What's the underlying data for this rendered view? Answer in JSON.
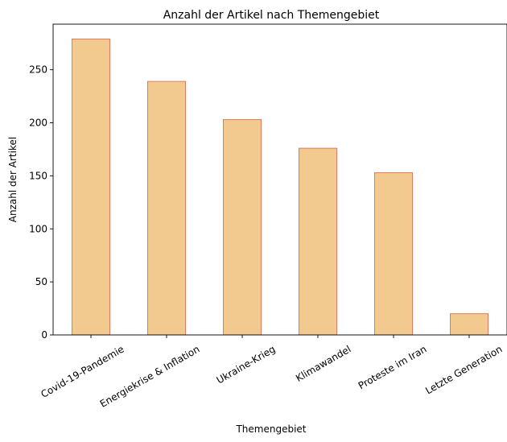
{
  "chart_data": {
    "type": "bar",
    "title": "Anzahl der Artikel nach Themengebiet",
    "xlabel": "Themengebiet",
    "ylabel": "Anzahl der Artikel",
    "categories": [
      "Covid-19-Pandemie",
      "Energiekrise & Inflation",
      "Ukraine-Krieg",
      "Klimawandel",
      "Proteste im Iran",
      "Letzte Generation"
    ],
    "values": [
      279,
      239,
      203,
      176,
      153,
      20
    ],
    "ylim": [
      0,
      293
    ],
    "yticks": [
      0,
      50,
      100,
      150,
      200,
      250
    ],
    "grid": false,
    "legend": "none",
    "colors": {
      "bar_fill": "#f2ca8f",
      "bar_edge": "#e07a5f"
    }
  }
}
